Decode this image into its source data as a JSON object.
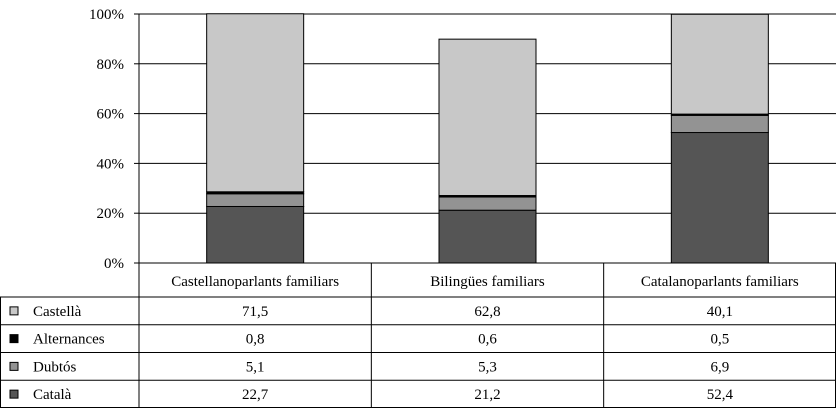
{
  "chart_data": {
    "type": "bar",
    "stacked": true,
    "title": "",
    "xlabel": "",
    "ylabel": "",
    "ylim": [
      0,
      100
    ],
    "yticks": [
      "0%",
      "20%",
      "40%",
      "60%",
      "80%",
      "100%"
    ],
    "grid": true,
    "legend": "data-table rows (left)",
    "categories": [
      "Castellanoparlants familiars",
      "Bilingües familiars",
      "Catalanoparlants familiars"
    ],
    "series": [
      {
        "name": "Català",
        "values": [
          22.7,
          21.2,
          52.4
        ],
        "labels": [
          "22,7",
          "21,2",
          "52,4"
        ],
        "color": "#555555"
      },
      {
        "name": "Dubtós",
        "values": [
          5.1,
          5.3,
          6.9
        ],
        "labels": [
          "5,1",
          "5,3",
          "6,9"
        ],
        "color": "#939393"
      },
      {
        "name": "Alternances",
        "values": [
          0.8,
          0.6,
          0.5
        ],
        "labels": [
          "0,8",
          "0,6",
          "0,5"
        ],
        "color": "#000000"
      },
      {
        "name": "Castellà",
        "values": [
          71.5,
          62.8,
          40.1
        ],
        "labels": [
          "71,5",
          "62,8",
          "40,1"
        ],
        "color": "#c8c8c8"
      }
    ],
    "table_row_order": [
      "Castellà",
      "Alternances",
      "Dubtós",
      "Català"
    ]
  }
}
